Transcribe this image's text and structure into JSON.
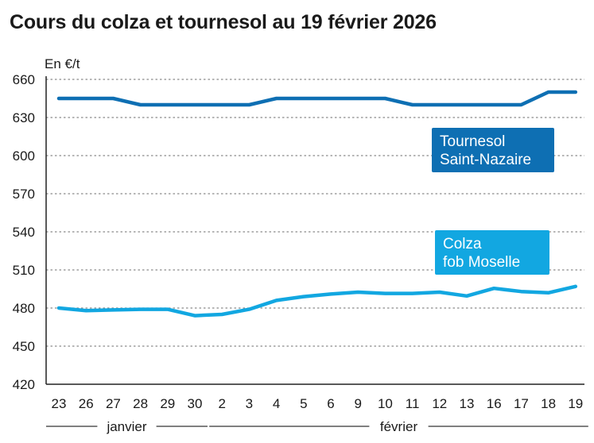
{
  "chart_data": {
    "type": "line",
    "title": "Cours du colza et tournesol au 19 février 2026",
    "ylabel": "En €/t",
    "ylim": [
      420,
      660
    ],
    "yticks": [
      660,
      630,
      600,
      570,
      540,
      510,
      480,
      450,
      420
    ],
    "categories": [
      "23",
      "26",
      "27",
      "28",
      "29",
      "30",
      "2",
      "3",
      "4",
      "5",
      "6",
      "9",
      "10",
      "11",
      "12",
      "13",
      "16",
      "17",
      "18",
      "19"
    ],
    "month_groups": [
      {
        "label": "janvier",
        "start": 0,
        "end": 5
      },
      {
        "label": "février",
        "start": 6,
        "end": 19
      }
    ],
    "grid": true,
    "series": [
      {
        "name": "Tournesol Saint-Nazaire",
        "label_lines": [
          "Tournesol",
          "Saint-Nazaire"
        ],
        "color": "#0e6fb3",
        "values": [
          645,
          645,
          645,
          640,
          640,
          640,
          640,
          640,
          645,
          645,
          645,
          645,
          645,
          640,
          640,
          640,
          640,
          640,
          650,
          650
        ]
      },
      {
        "name": "Colza fob Moselle",
        "label_lines": [
          "Colza",
          "fob Moselle"
        ],
        "color": "#12a7e1",
        "values": [
          480,
          478,
          478.5,
          479,
          479,
          474,
          475,
          479,
          486,
          489,
          491,
          492.5,
          491.5,
          491.5,
          492.5,
          489.5,
          495.5,
          493,
          492,
          497
        ]
      }
    ]
  }
}
